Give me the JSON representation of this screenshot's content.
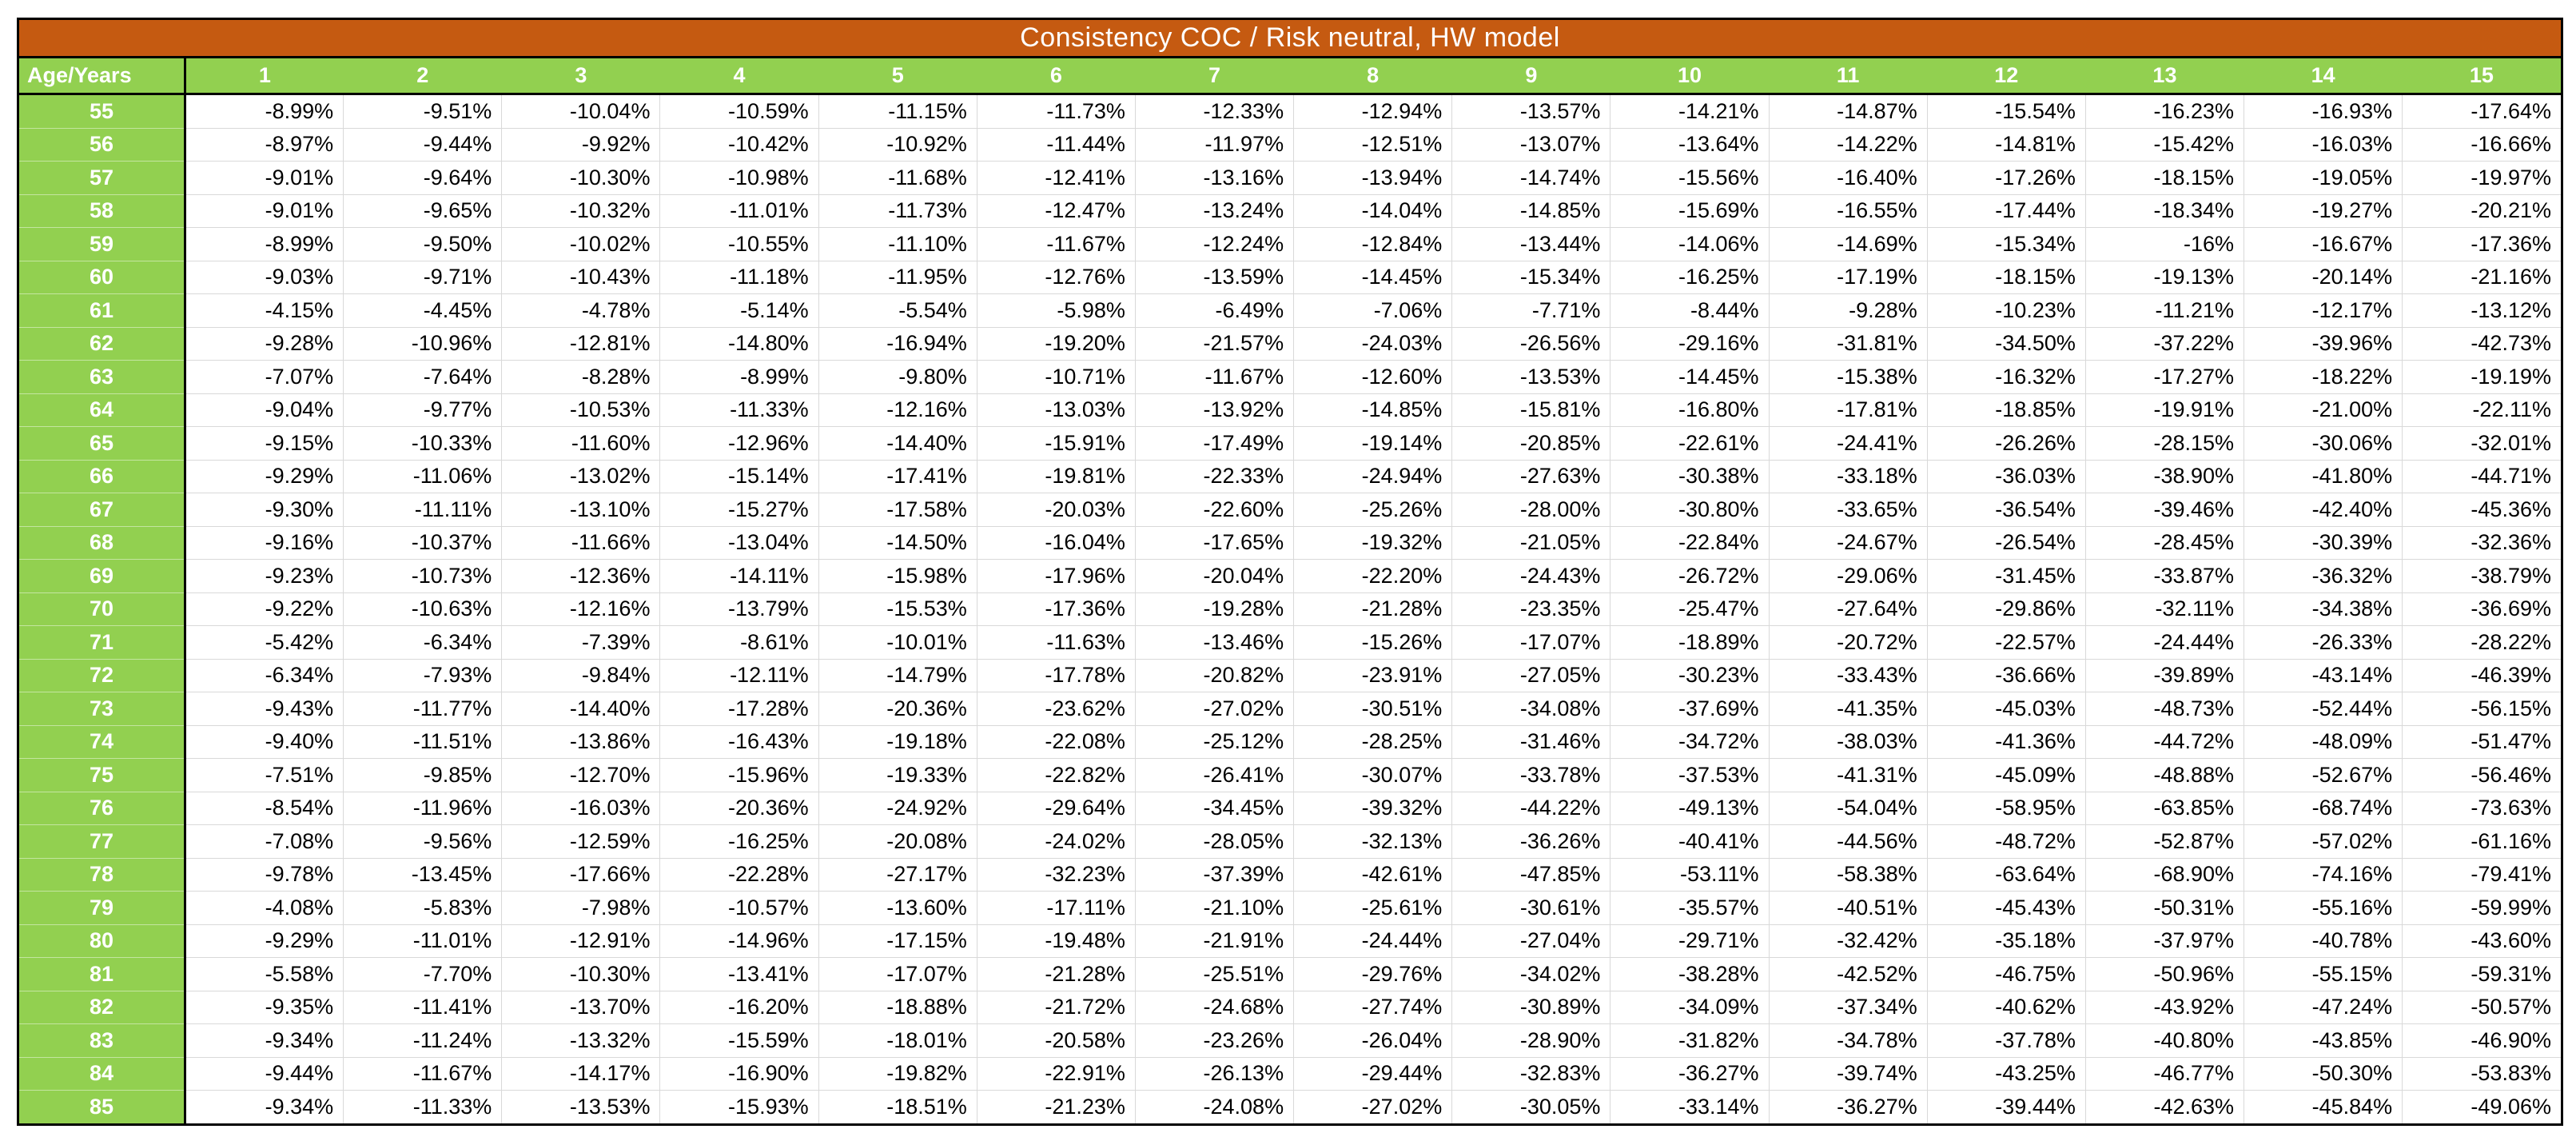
{
  "title": "Consistency COC / Risk neutral, HW model",
  "header": {
    "corner_label": "Age/Years"
  },
  "colors": {
    "title_bg": "#C55A11",
    "header_bg": "#92D050",
    "grid_line": "#D9D9D9",
    "table_border": "#000000",
    "header_text": "#FFFFFF",
    "cell_text": "#000000"
  },
  "chart_data": {
    "type": "table",
    "title": "Consistency COC / Risk neutral, HW model",
    "row_header_label": "Age/Years",
    "columns": [
      "1",
      "2",
      "3",
      "4",
      "5",
      "6",
      "7",
      "8",
      "9",
      "10",
      "11",
      "12",
      "13",
      "14",
      "15"
    ],
    "rows": [
      {
        "age": "55",
        "values": [
          "-8.99%",
          "-9.51%",
          "-10.04%",
          "-10.59%",
          "-11.15%",
          "-11.73%",
          "-12.33%",
          "-12.94%",
          "-13.57%",
          "-14.21%",
          "-14.87%",
          "-15.54%",
          "-16.23%",
          "-16.93%",
          "-17.64%"
        ]
      },
      {
        "age": "56",
        "values": [
          "-8.97%",
          "-9.44%",
          "-9.92%",
          "-10.42%",
          "-10.92%",
          "-11.44%",
          "-11.97%",
          "-12.51%",
          "-13.07%",
          "-13.64%",
          "-14.22%",
          "-14.81%",
          "-15.42%",
          "-16.03%",
          "-16.66%"
        ]
      },
      {
        "age": "57",
        "values": [
          "-9.01%",
          "-9.64%",
          "-10.30%",
          "-10.98%",
          "-11.68%",
          "-12.41%",
          "-13.16%",
          "-13.94%",
          "-14.74%",
          "-15.56%",
          "-16.40%",
          "-17.26%",
          "-18.15%",
          "-19.05%",
          "-19.97%"
        ]
      },
      {
        "age": "58",
        "values": [
          "-9.01%",
          "-9.65%",
          "-10.32%",
          "-11.01%",
          "-11.73%",
          "-12.47%",
          "-13.24%",
          "-14.04%",
          "-14.85%",
          "-15.69%",
          "-16.55%",
          "-17.44%",
          "-18.34%",
          "-19.27%",
          "-20.21%"
        ]
      },
      {
        "age": "59",
        "values": [
          "-8.99%",
          "-9.50%",
          "-10.02%",
          "-10.55%",
          "-11.10%",
          "-11.67%",
          "-12.24%",
          "-12.84%",
          "-13.44%",
          "-14.06%",
          "-14.69%",
          "-15.34%",
          "-16%",
          "-16.67%",
          "-17.36%"
        ]
      },
      {
        "age": "60",
        "values": [
          "-9.03%",
          "-9.71%",
          "-10.43%",
          "-11.18%",
          "-11.95%",
          "-12.76%",
          "-13.59%",
          "-14.45%",
          "-15.34%",
          "-16.25%",
          "-17.19%",
          "-18.15%",
          "-19.13%",
          "-20.14%",
          "-21.16%"
        ]
      },
      {
        "age": "61",
        "values": [
          "-4.15%",
          "-4.45%",
          "-4.78%",
          "-5.14%",
          "-5.54%",
          "-5.98%",
          "-6.49%",
          "-7.06%",
          "-7.71%",
          "-8.44%",
          "-9.28%",
          "-10.23%",
          "-11.21%",
          "-12.17%",
          "-13.12%"
        ]
      },
      {
        "age": "62",
        "values": [
          "-9.28%",
          "-10.96%",
          "-12.81%",
          "-14.80%",
          "-16.94%",
          "-19.20%",
          "-21.57%",
          "-24.03%",
          "-26.56%",
          "-29.16%",
          "-31.81%",
          "-34.50%",
          "-37.22%",
          "-39.96%",
          "-42.73%"
        ]
      },
      {
        "age": "63",
        "values": [
          "-7.07%",
          "-7.64%",
          "-8.28%",
          "-8.99%",
          "-9.80%",
          "-10.71%",
          "-11.67%",
          "-12.60%",
          "-13.53%",
          "-14.45%",
          "-15.38%",
          "-16.32%",
          "-17.27%",
          "-18.22%",
          "-19.19%"
        ]
      },
      {
        "age": "64",
        "values": [
          "-9.04%",
          "-9.77%",
          "-10.53%",
          "-11.33%",
          "-12.16%",
          "-13.03%",
          "-13.92%",
          "-14.85%",
          "-15.81%",
          "-16.80%",
          "-17.81%",
          "-18.85%",
          "-19.91%",
          "-21.00%",
          "-22.11%"
        ]
      },
      {
        "age": "65",
        "values": [
          "-9.15%",
          "-10.33%",
          "-11.60%",
          "-12.96%",
          "-14.40%",
          "-15.91%",
          "-17.49%",
          "-19.14%",
          "-20.85%",
          "-22.61%",
          "-24.41%",
          "-26.26%",
          "-28.15%",
          "-30.06%",
          "-32.01%"
        ]
      },
      {
        "age": "66",
        "values": [
          "-9.29%",
          "-11.06%",
          "-13.02%",
          "-15.14%",
          "-17.41%",
          "-19.81%",
          "-22.33%",
          "-24.94%",
          "-27.63%",
          "-30.38%",
          "-33.18%",
          "-36.03%",
          "-38.90%",
          "-41.80%",
          "-44.71%"
        ]
      },
      {
        "age": "67",
        "values": [
          "-9.30%",
          "-11.11%",
          "-13.10%",
          "-15.27%",
          "-17.58%",
          "-20.03%",
          "-22.60%",
          "-25.26%",
          "-28.00%",
          "-30.80%",
          "-33.65%",
          "-36.54%",
          "-39.46%",
          "-42.40%",
          "-45.36%"
        ]
      },
      {
        "age": "68",
        "values": [
          "-9.16%",
          "-10.37%",
          "-11.66%",
          "-13.04%",
          "-14.50%",
          "-16.04%",
          "-17.65%",
          "-19.32%",
          "-21.05%",
          "-22.84%",
          "-24.67%",
          "-26.54%",
          "-28.45%",
          "-30.39%",
          "-32.36%"
        ]
      },
      {
        "age": "69",
        "values": [
          "-9.23%",
          "-10.73%",
          "-12.36%",
          "-14.11%",
          "-15.98%",
          "-17.96%",
          "-20.04%",
          "-22.20%",
          "-24.43%",
          "-26.72%",
          "-29.06%",
          "-31.45%",
          "-33.87%",
          "-36.32%",
          "-38.79%"
        ]
      },
      {
        "age": "70",
        "values": [
          "-9.22%",
          "-10.63%",
          "-12.16%",
          "-13.79%",
          "-15.53%",
          "-17.36%",
          "-19.28%",
          "-21.28%",
          "-23.35%",
          "-25.47%",
          "-27.64%",
          "-29.86%",
          "-32.11%",
          "-34.38%",
          "-36.69%"
        ]
      },
      {
        "age": "71",
        "values": [
          "-5.42%",
          "-6.34%",
          "-7.39%",
          "-8.61%",
          "-10.01%",
          "-11.63%",
          "-13.46%",
          "-15.26%",
          "-17.07%",
          "-18.89%",
          "-20.72%",
          "-22.57%",
          "-24.44%",
          "-26.33%",
          "-28.22%"
        ]
      },
      {
        "age": "72",
        "values": [
          "-6.34%",
          "-7.93%",
          "-9.84%",
          "-12.11%",
          "-14.79%",
          "-17.78%",
          "-20.82%",
          "-23.91%",
          "-27.05%",
          "-30.23%",
          "-33.43%",
          "-36.66%",
          "-39.89%",
          "-43.14%",
          "-46.39%"
        ]
      },
      {
        "age": "73",
        "values": [
          "-9.43%",
          "-11.77%",
          "-14.40%",
          "-17.28%",
          "-20.36%",
          "-23.62%",
          "-27.02%",
          "-30.51%",
          "-34.08%",
          "-37.69%",
          "-41.35%",
          "-45.03%",
          "-48.73%",
          "-52.44%",
          "-56.15%"
        ]
      },
      {
        "age": "74",
        "values": [
          "-9.40%",
          "-11.51%",
          "-13.86%",
          "-16.43%",
          "-19.18%",
          "-22.08%",
          "-25.12%",
          "-28.25%",
          "-31.46%",
          "-34.72%",
          "-38.03%",
          "-41.36%",
          "-44.72%",
          "-48.09%",
          "-51.47%"
        ]
      },
      {
        "age": "75",
        "values": [
          "-7.51%",
          "-9.85%",
          "-12.70%",
          "-15.96%",
          "-19.33%",
          "-22.82%",
          "-26.41%",
          "-30.07%",
          "-33.78%",
          "-37.53%",
          "-41.31%",
          "-45.09%",
          "-48.88%",
          "-52.67%",
          "-56.46%"
        ]
      },
      {
        "age": "76",
        "values": [
          "-8.54%",
          "-11.96%",
          "-16.03%",
          "-20.36%",
          "-24.92%",
          "-29.64%",
          "-34.45%",
          "-39.32%",
          "-44.22%",
          "-49.13%",
          "-54.04%",
          "-58.95%",
          "-63.85%",
          "-68.74%",
          "-73.63%"
        ]
      },
      {
        "age": "77",
        "values": [
          "-7.08%",
          "-9.56%",
          "-12.59%",
          "-16.25%",
          "-20.08%",
          "-24.02%",
          "-28.05%",
          "-32.13%",
          "-36.26%",
          "-40.41%",
          "-44.56%",
          "-48.72%",
          "-52.87%",
          "-57.02%",
          "-61.16%"
        ]
      },
      {
        "age": "78",
        "values": [
          "-9.78%",
          "-13.45%",
          "-17.66%",
          "-22.28%",
          "-27.17%",
          "-32.23%",
          "-37.39%",
          "-42.61%",
          "-47.85%",
          "-53.11%",
          "-58.38%",
          "-63.64%",
          "-68.90%",
          "-74.16%",
          "-79.41%"
        ]
      },
      {
        "age": "79",
        "values": [
          "-4.08%",
          "-5.83%",
          "-7.98%",
          "-10.57%",
          "-13.60%",
          "-17.11%",
          "-21.10%",
          "-25.61%",
          "-30.61%",
          "-35.57%",
          "-40.51%",
          "-45.43%",
          "-50.31%",
          "-55.16%",
          "-59.99%"
        ]
      },
      {
        "age": "80",
        "values": [
          "-9.29%",
          "-11.01%",
          "-12.91%",
          "-14.96%",
          "-17.15%",
          "-19.48%",
          "-21.91%",
          "-24.44%",
          "-27.04%",
          "-29.71%",
          "-32.42%",
          "-35.18%",
          "-37.97%",
          "-40.78%",
          "-43.60%"
        ]
      },
      {
        "age": "81",
        "values": [
          "-5.58%",
          "-7.70%",
          "-10.30%",
          "-13.41%",
          "-17.07%",
          "-21.28%",
          "-25.51%",
          "-29.76%",
          "-34.02%",
          "-38.28%",
          "-42.52%",
          "-46.75%",
          "-50.96%",
          "-55.15%",
          "-59.31%"
        ]
      },
      {
        "age": "82",
        "values": [
          "-9.35%",
          "-11.41%",
          "-13.70%",
          "-16.20%",
          "-18.88%",
          "-21.72%",
          "-24.68%",
          "-27.74%",
          "-30.89%",
          "-34.09%",
          "-37.34%",
          "-40.62%",
          "-43.92%",
          "-47.24%",
          "-50.57%"
        ]
      },
      {
        "age": "83",
        "values": [
          "-9.34%",
          "-11.24%",
          "-13.32%",
          "-15.59%",
          "-18.01%",
          "-20.58%",
          "-23.26%",
          "-26.04%",
          "-28.90%",
          "-31.82%",
          "-34.78%",
          "-37.78%",
          "-40.80%",
          "-43.85%",
          "-46.90%"
        ]
      },
      {
        "age": "84",
        "values": [
          "-9.44%",
          "-11.67%",
          "-14.17%",
          "-16.90%",
          "-19.82%",
          "-22.91%",
          "-26.13%",
          "-29.44%",
          "-32.83%",
          "-36.27%",
          "-39.74%",
          "-43.25%",
          "-46.77%",
          "-50.30%",
          "-53.83%"
        ]
      },
      {
        "age": "85",
        "values": [
          "-9.34%",
          "-11.33%",
          "-13.53%",
          "-15.93%",
          "-18.51%",
          "-21.23%",
          "-24.08%",
          "-27.02%",
          "-30.05%",
          "-33.14%",
          "-36.27%",
          "-39.44%",
          "-42.63%",
          "-45.84%",
          "-49.06%"
        ]
      }
    ]
  }
}
